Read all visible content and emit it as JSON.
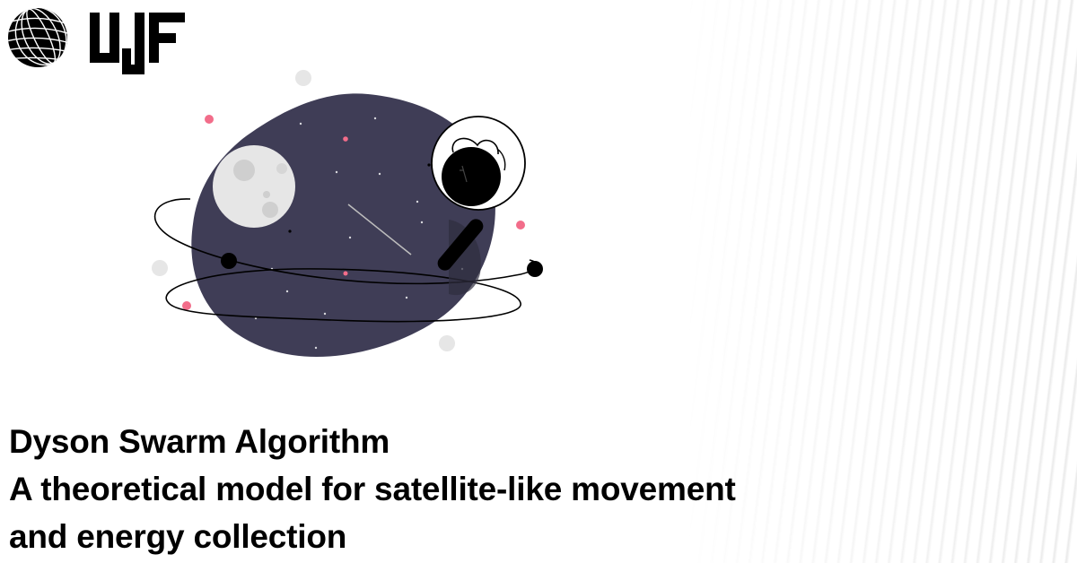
{
  "title": {
    "line1": "Dyson Swarm Algorithm",
    "line2": "A theoretical model for satellite-like movement",
    "line3": "and energy collection"
  },
  "icons": {
    "globe": "wireframe-globe-icon",
    "brand": "ujf-logo",
    "illustration": "astronaut-planet-illustration"
  },
  "colors": {
    "planet": "#3f3d56",
    "accent_dots": "#f26d8a",
    "text": "#000000"
  }
}
